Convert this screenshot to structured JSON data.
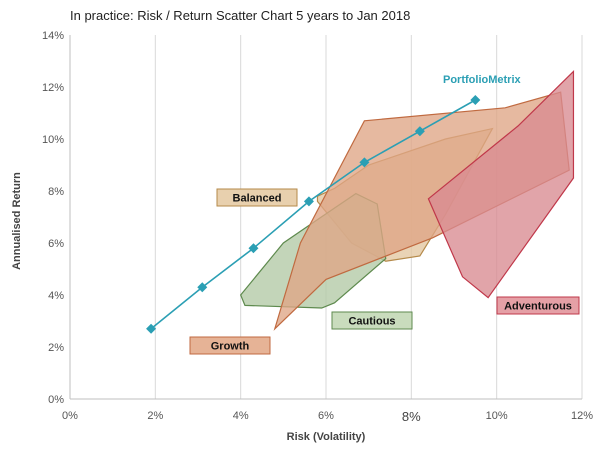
{
  "chart_data": {
    "type": "scatter",
    "title": "In practice: Risk / Return Scatter Chart 5 years to Jan 2018",
    "xlabel": "Risk (Volatility)",
    "ylabel": "Annualised Return",
    "xlim": [
      0,
      12
    ],
    "ylim": [
      0,
      14
    ],
    "x_ticks": [
      "0%",
      "2%",
      "4%",
      "6%",
      "8%",
      "10%",
      "12%"
    ],
    "y_ticks": [
      "0%",
      "2%",
      "4%",
      "6%",
      "8%",
      "10%",
      "12%",
      "14%"
    ],
    "gridlines": "vertical",
    "line_series": {
      "name": "PortfolioMetrix",
      "color": "#2b9fb4",
      "marker": "diamond",
      "x": [
        1.9,
        3.1,
        4.3,
        5.6,
        6.9,
        8.2,
        9.5
      ],
      "y": [
        2.7,
        4.3,
        5.8,
        7.6,
        9.1,
        10.3,
        11.5
      ]
    },
    "regions": [
      {
        "name": "Balanced",
        "fill": "#e3c6a0",
        "stroke": "#b58a4a",
        "label_box": "#e8d0ae",
        "points": [
          [
            5.8,
            7.8
          ],
          [
            6.2,
            8.1
          ],
          [
            7.0,
            9.0
          ],
          [
            8.8,
            10.0
          ],
          [
            9.9,
            10.4
          ],
          [
            8.8,
            7.1
          ],
          [
            8.2,
            5.5
          ],
          [
            7.4,
            5.3
          ],
          [
            6.6,
            6.0
          ],
          [
            5.8,
            7.6
          ]
        ]
      },
      {
        "name": "Cautious",
        "fill": "#b2c9a5",
        "stroke": "#5e8a4e",
        "label_box": "#c9dcbd",
        "points": [
          [
            4.0,
            4.0
          ],
          [
            5.0,
            6.0
          ],
          [
            5.8,
            6.9
          ],
          [
            6.7,
            7.9
          ],
          [
            7.2,
            7.5
          ],
          [
            7.4,
            5.4
          ],
          [
            6.2,
            3.7
          ],
          [
            5.9,
            3.5
          ],
          [
            4.1,
            3.6
          ]
        ]
      },
      {
        "name": "Growth",
        "fill": "#dfa585",
        "stroke": "#c06a40",
        "label_box": "#e6b396",
        "points": [
          [
            4.8,
            2.7
          ],
          [
            5.4,
            6.0
          ],
          [
            6.9,
            10.7
          ],
          [
            10.2,
            11.2
          ],
          [
            11.5,
            11.8
          ],
          [
            11.7,
            8.8
          ],
          [
            8.5,
            6.2
          ],
          [
            6.0,
            4.6
          ],
          [
            4.8,
            2.7
          ]
        ]
      },
      {
        "name": "Adventurous",
        "fill": "#d98a91",
        "stroke": "#c0384a",
        "label_box": "#e5a0a6",
        "points": [
          [
            8.4,
            7.7
          ],
          [
            10.5,
            10.5
          ],
          [
            11.8,
            12.6
          ],
          [
            11.8,
            8.5
          ],
          [
            9.8,
            3.9
          ],
          [
            9.2,
            4.7
          ],
          [
            8.4,
            7.7
          ]
        ]
      }
    ]
  }
}
